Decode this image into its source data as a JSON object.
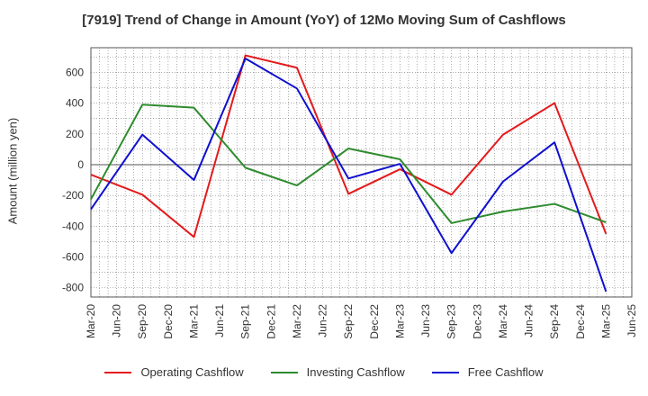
{
  "chart_data": {
    "type": "line",
    "title": "[7919]  Trend of Change in Amount (YoY) of 12Mo Moving Sum of Cashflows",
    "xlabel": "",
    "ylabel": "Amount (million yen)",
    "x": [
      "Mar-20",
      "Jun-20",
      "Sep-20",
      "Dec-20",
      "Mar-21",
      "Jun-21",
      "Sep-21",
      "Dec-21",
      "Mar-22",
      "Jun-22",
      "Sep-22",
      "Dec-22",
      "Mar-23",
      "Jun-23",
      "Sep-23",
      "Dec-23",
      "Mar-24",
      "Jun-24",
      "Sep-24",
      "Dec-24",
      "Mar-25",
      "Jun-25"
    ],
    "ylim": [
      -860,
      760
    ],
    "yticks": [
      600,
      400,
      200,
      0,
      -200,
      -400,
      -600,
      -800
    ],
    "grid": true,
    "legend_position": "bottom",
    "series": [
      {
        "name": "Operating Cashflow",
        "color": "#e31a1c",
        "points": [
          [
            "Mar-20",
            -65
          ],
          [
            "Sep-20",
            -195
          ],
          [
            "Mar-21",
            -470
          ],
          [
            "Sep-21",
            710
          ],
          [
            "Mar-22",
            630
          ],
          [
            "Sep-22",
            -190
          ],
          [
            "Mar-23",
            -30
          ],
          [
            "Sep-23",
            -195
          ],
          [
            "Mar-24",
            195
          ],
          [
            "Sep-24",
            400
          ],
          [
            "Mar-25",
            -450
          ]
        ]
      },
      {
        "name": "Investing Cashflow",
        "color": "#2e8b2e",
        "points": [
          [
            "Mar-20",
            -225
          ],
          [
            "Sep-20",
            390
          ],
          [
            "Mar-21",
            370
          ],
          [
            "Sep-21",
            -20
          ],
          [
            "Mar-22",
            -135
          ],
          [
            "Sep-22",
            105
          ],
          [
            "Mar-23",
            35
          ],
          [
            "Sep-23",
            -380
          ],
          [
            "Mar-24",
            -305
          ],
          [
            "Sep-24",
            -255
          ],
          [
            "Mar-25",
            -375
          ]
        ]
      },
      {
        "name": "Free Cashflow",
        "color": "#1010d0",
        "points": [
          [
            "Mar-20",
            -290
          ],
          [
            "Sep-20",
            195
          ],
          [
            "Mar-21",
            -100
          ],
          [
            "Sep-21",
            690
          ],
          [
            "Mar-22",
            495
          ],
          [
            "Sep-22",
            -90
          ],
          [
            "Mar-23",
            5
          ],
          [
            "Sep-23",
            -575
          ],
          [
            "Mar-24",
            -110
          ],
          [
            "Sep-24",
            145
          ],
          [
            "Mar-25",
            -825
          ]
        ]
      }
    ]
  }
}
